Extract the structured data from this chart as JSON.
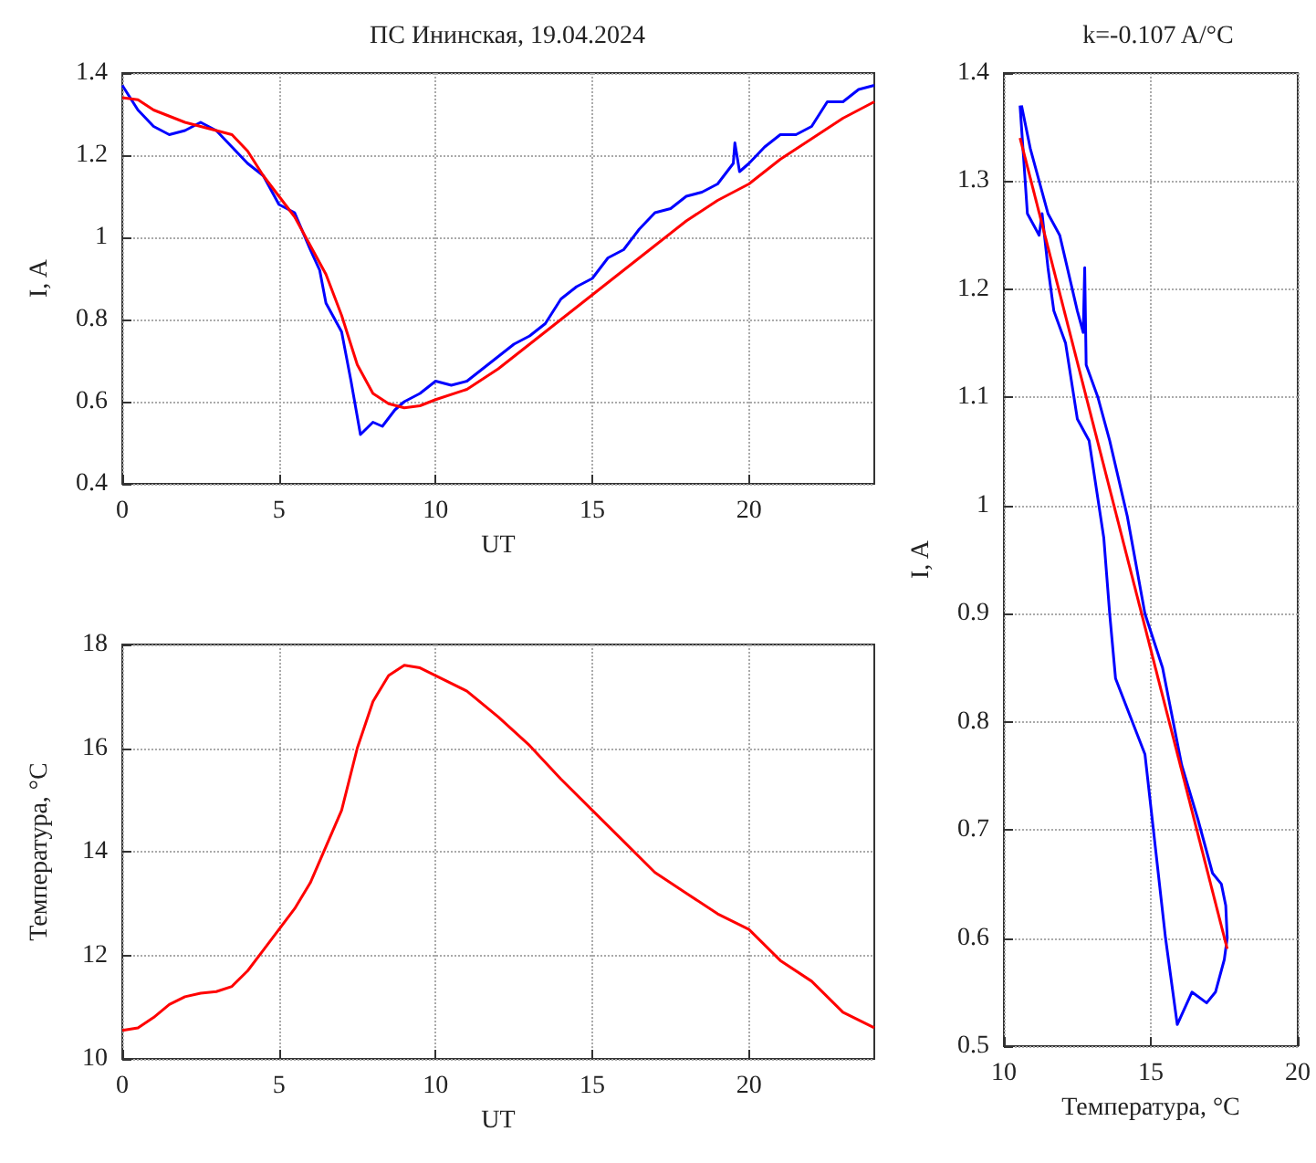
{
  "chart_data": [
    {
      "type": "line",
      "title": "ПС Ининская, 19.04.2024",
      "xlabel": "UT",
      "ylabel": "I, A",
      "xlim": [
        0,
        24
      ],
      "xticks": [
        0,
        5,
        10,
        15,
        20
      ],
      "ylim": [
        0.4,
        1.4
      ],
      "yticks": [
        0.4,
        0.6,
        0.8,
        1,
        1.2,
        1.4
      ],
      "grid": true,
      "marker": "none",
      "line_style": "solid",
      "series": [
        {
          "color": "#0000ff",
          "x": [
            0,
            0.5,
            1,
            1.5,
            2,
            2.5,
            3,
            3.5,
            4,
            4.5,
            5,
            5.5,
            6,
            6.3,
            6.5,
            7,
            7.3,
            7.6,
            8,
            8.3,
            8.7,
            9,
            9.5,
            10,
            10.5,
            11,
            11.5,
            12,
            12.5,
            13,
            13.5,
            14,
            14.5,
            15,
            15.5,
            16,
            16.5,
            17,
            17.5,
            18,
            18.5,
            19,
            19.5,
            19.55,
            19.7,
            20,
            20.5,
            21,
            21.5,
            22,
            22.5,
            23,
            23.5,
            24
          ],
          "values": [
            1.37,
            1.31,
            1.27,
            1.25,
            1.26,
            1.28,
            1.26,
            1.22,
            1.18,
            1.15,
            1.08,
            1.06,
            0.97,
            0.92,
            0.84,
            0.77,
            0.65,
            0.52,
            0.55,
            0.54,
            0.58,
            0.6,
            0.62,
            0.65,
            0.64,
            0.65,
            0.68,
            0.71,
            0.74,
            0.76,
            0.79,
            0.85,
            0.88,
            0.9,
            0.95,
            0.97,
            1.02,
            1.06,
            1.07,
            1.1,
            1.11,
            1.13,
            1.18,
            1.23,
            1.16,
            1.18,
            1.22,
            1.25,
            1.25,
            1.27,
            1.33,
            1.33,
            1.36,
            1.37
          ]
        },
        {
          "color": "#ff0000",
          "x": [
            0,
            0.5,
            1,
            2,
            3,
            3.5,
            4,
            4.5,
            5,
            5.5,
            6,
            6.5,
            7,
            7.5,
            8,
            8.5,
            9,
            9.5,
            10,
            11,
            12,
            13,
            14,
            15,
            16,
            17,
            18,
            19,
            20,
            21,
            22,
            23,
            24
          ],
          "values": [
            1.34,
            1.335,
            1.31,
            1.28,
            1.26,
            1.25,
            1.21,
            1.15,
            1.1,
            1.05,
            0.98,
            0.91,
            0.81,
            0.69,
            0.62,
            0.595,
            0.585,
            0.59,
            0.605,
            0.63,
            0.68,
            0.74,
            0.8,
            0.86,
            0.92,
            0.98,
            1.04,
            1.09,
            1.13,
            1.19,
            1.24,
            1.29,
            1.33
          ]
        }
      ]
    },
    {
      "type": "line",
      "xlabel": "UT",
      "ylabel": "Температура, °C",
      "xlim": [
        0,
        24
      ],
      "xticks": [
        0,
        5,
        10,
        15,
        20
      ],
      "ylim": [
        10,
        18
      ],
      "yticks": [
        10,
        12,
        14,
        16,
        18
      ],
      "grid": true,
      "marker": "none",
      "line_style": "solid",
      "series": [
        {
          "color": "#ff0000",
          "x": [
            0,
            0.5,
            1,
            1.5,
            2,
            2.5,
            3,
            3.5,
            4,
            4.5,
            5,
            5.5,
            6,
            6.5,
            7,
            7.5,
            8,
            8.5,
            9,
            9.5,
            10,
            11,
            12,
            13,
            14,
            15,
            16,
            17,
            18,
            19,
            20,
            21,
            22,
            23,
            24
          ],
          "values": [
            10.55,
            10.6,
            10.8,
            11.05,
            11.2,
            11.27,
            11.3,
            11.4,
            11.7,
            12.1,
            12.5,
            12.9,
            13.4,
            14.1,
            14.8,
            16,
            16.9,
            17.4,
            17.6,
            17.55,
            17.4,
            17.1,
            16.6,
            16.05,
            15.4,
            14.8,
            14.2,
            13.6,
            13.2,
            12.8,
            12.5,
            11.9,
            11.5,
            10.9,
            10.6
          ]
        }
      ]
    },
    {
      "type": "line",
      "title": "k=-0.107 A/°C",
      "xlabel": "Температура, °C",
      "ylabel": "I, A",
      "xlim": [
        10,
        20
      ],
      "xticks": [
        10,
        15,
        20
      ],
      "ylim": [
        0.5,
        1.4
      ],
      "yticks": [
        0.5,
        0.6,
        0.7,
        0.8,
        0.9,
        1,
        1.1,
        1.2,
        1.3,
        1.4
      ],
      "grid": true,
      "marker": "none",
      "line_style": "solid",
      "series": [
        {
          "color": "#0000ff",
          "x": [
            10.55,
            10.8,
            11.2,
            11.3,
            11.5,
            11.7,
            12.1,
            12.5,
            12.9,
            13.4,
            13.6,
            13.8,
            14.8,
            15.5,
            15.9,
            16.4,
            16.9,
            17.2,
            17.5,
            17.6,
            17.55,
            17.4,
            17.1,
            16.6,
            16.05,
            15.4,
            14.8,
            14.2,
            13.6,
            13.2,
            12.8,
            12.75,
            12.7,
            12.5,
            11.9,
            11.5,
            10.9,
            10.6
          ],
          "values": [
            1.37,
            1.27,
            1.25,
            1.27,
            1.22,
            1.18,
            1.15,
            1.08,
            1.06,
            0.97,
            0.9,
            0.84,
            0.77,
            0.6,
            0.52,
            0.55,
            0.54,
            0.55,
            0.58,
            0.6,
            0.63,
            0.65,
            0.66,
            0.71,
            0.76,
            0.85,
            0.9,
            0.99,
            1.06,
            1.1,
            1.13,
            1.22,
            1.16,
            1.18,
            1.25,
            1.27,
            1.33,
            1.37
          ]
        },
        {
          "color": "#ff0000",
          "x": [
            10.55,
            17.6
          ],
          "values": [
            1.34,
            0.59
          ]
        }
      ]
    }
  ]
}
